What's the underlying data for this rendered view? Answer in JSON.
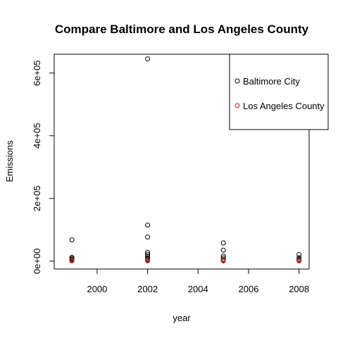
{
  "chart_data": {
    "type": "scatter",
    "title": "Compare Baltimore and Los Angeles County",
    "xlabel": "year",
    "ylabel": "Emissions",
    "xlim": [
      1998.3,
      2008.4
    ],
    "ylim": [
      -25000,
      660000
    ],
    "x_ticks": [
      2000,
      2002,
      2004,
      2006,
      2008
    ],
    "x_tick_labels": [
      "2000",
      "2002",
      "2004",
      "2006",
      "2008"
    ],
    "y_ticks": [
      0,
      200000,
      400000,
      600000
    ],
    "y_tick_labels": [
      "0e+00",
      "2e+05",
      "4e+05",
      "6e+05"
    ],
    "grid": false,
    "legend_position": "top-right",
    "series": [
      {
        "name": "Baltimore City",
        "color": "#000000",
        "marker": "open-circle",
        "points": [
          {
            "x": 1999,
            "y": 68000
          },
          {
            "x": 1999,
            "y": 12000
          },
          {
            "x": 1999,
            "y": 9000
          },
          {
            "x": 1999,
            "y": 6000
          },
          {
            "x": 1999,
            "y": 3500
          },
          {
            "x": 1999,
            "y": 1500
          },
          {
            "x": 2002,
            "y": 645000
          },
          {
            "x": 2002,
            "y": 115000
          },
          {
            "x": 2002,
            "y": 77000
          },
          {
            "x": 2002,
            "y": 28000
          },
          {
            "x": 2002,
            "y": 22000
          },
          {
            "x": 2002,
            "y": 16000
          },
          {
            "x": 2002,
            "y": 11000
          },
          {
            "x": 2002,
            "y": 7000
          },
          {
            "x": 2002,
            "y": 3000
          },
          {
            "x": 2005,
            "y": 58000
          },
          {
            "x": 2005,
            "y": 35000
          },
          {
            "x": 2005,
            "y": 16000
          },
          {
            "x": 2005,
            "y": 10000
          },
          {
            "x": 2005,
            "y": 5000
          },
          {
            "x": 2005,
            "y": 2000
          },
          {
            "x": 2008,
            "y": 21000
          },
          {
            "x": 2008,
            "y": 11000
          },
          {
            "x": 2008,
            "y": 6000
          },
          {
            "x": 2008,
            "y": 2500
          }
        ]
      },
      {
        "name": "Los Angeles County",
        "color": "#b22222",
        "marker": "open-circle",
        "points": [
          {
            "x": 1999,
            "y": 4000
          },
          {
            "x": 1999,
            "y": 1000
          },
          {
            "x": 2002,
            "y": 5000
          },
          {
            "x": 2002,
            "y": 1200
          },
          {
            "x": 2005,
            "y": 4000
          },
          {
            "x": 2005,
            "y": 800
          },
          {
            "x": 2008,
            "y": 3500
          },
          {
            "x": 2008,
            "y": 900
          }
        ]
      }
    ]
  }
}
